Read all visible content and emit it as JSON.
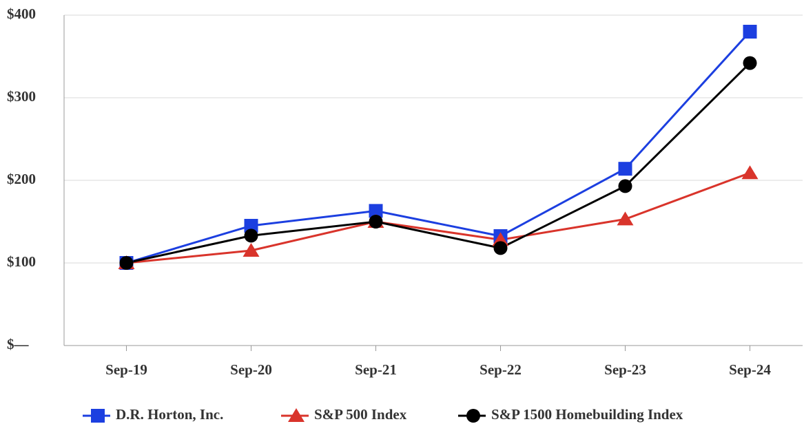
{
  "chart_data": {
    "type": "line",
    "categories": [
      "Sep-19",
      "Sep-20",
      "Sep-21",
      "Sep-22",
      "Sep-23",
      "Sep-24"
    ],
    "series": [
      {
        "name": "D.R. Horton, Inc.",
        "color": "#1c3fe0",
        "marker": "square",
        "values": [
          100,
          145,
          163,
          132.5,
          214,
          380
        ]
      },
      {
        "name": "S&P 500 Index",
        "color": "#d9342b",
        "marker": "triangle",
        "values": [
          100,
          115,
          150,
          128,
          153,
          209
        ]
      },
      {
        "name": "S&P 1500 Homebuilding Index",
        "color": "#000000",
        "marker": "circle",
        "values": [
          100,
          133,
          150,
          118,
          193,
          342
        ]
      }
    ],
    "ylim": [
      0,
      400
    ],
    "yticks": [
      {
        "value": 0,
        "label": "$—"
      },
      {
        "value": 100,
        "label": "$100"
      },
      {
        "value": 200,
        "label": "$200"
      },
      {
        "value": 300,
        "label": "$300"
      },
      {
        "value": 400,
        "label": "$400"
      }
    ],
    "grid": true,
    "legend": "bottom"
  }
}
